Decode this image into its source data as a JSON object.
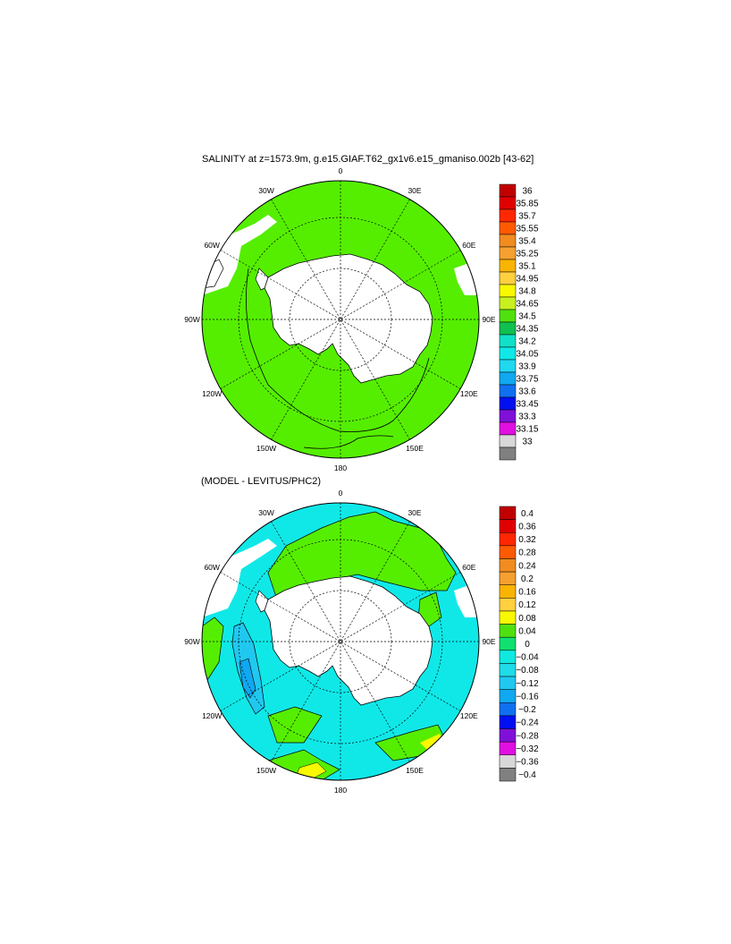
{
  "chart_data": [
    {
      "type": "map",
      "title": "SALINITY at z=1573.9m, g.e15.GIAF.T62_gx1v6.e15_gmaniso.002b [43-62]",
      "longitude_labels": [
        "0",
        "30E",
        "60E",
        "90E",
        "120E",
        "150E",
        "180",
        "150W",
        "120W",
        "90W",
        "60W",
        "30W"
      ],
      "colorbar": {
        "labels": [
          "36",
          "35.85",
          "35.7",
          "35.55",
          "35.4",
          "35.25",
          "35.1",
          "34.95",
          "34.8",
          "34.65",
          "34.5",
          "34.35",
          "34.2",
          "34.05",
          "33.9",
          "33.75",
          "33.6",
          "33.45",
          "33.3",
          "33.15",
          "33"
        ],
        "colors": [
          "#c00000",
          "#e00000",
          "#ff2800",
          "#ff5a00",
          "#f08c20",
          "#f5a030",
          "#f8b400",
          "#ffd040",
          "#f8f800",
          "#c8f020",
          "#50e010",
          "#10c050",
          "#10e0c8",
          "#10e8e8",
          "#20d8f0",
          "#10a8f0",
          "#1070f0",
          "#0010f0",
          "#8010d8",
          "#e010e0",
          "#d8d8d8",
          "#808080"
        ]
      }
    },
    {
      "type": "map",
      "title": "(MODEL - LEVITUS/PHC2)",
      "longitude_labels": [
        "0",
        "30E",
        "60E",
        "90E",
        "120E",
        "150E",
        "180",
        "150W",
        "120W",
        "90W",
        "60W",
        "30W"
      ],
      "colorbar": {
        "labels": [
          "0.4",
          "0.36",
          "0.32",
          "0.28",
          "0.24",
          "0.2",
          "0.16",
          "0.12",
          "0.08",
          "0.04",
          "0",
          "−0.04",
          "−0.08",
          "−0.12",
          "−0.16",
          "−0.2",
          "−0.24",
          "−0.28",
          "−0.32",
          "−0.36",
          "−0.4"
        ],
        "colors": [
          "#c00000",
          "#e00000",
          "#ff2800",
          "#ff5a00",
          "#f08c20",
          "#f5a030",
          "#f8b400",
          "#ffd040",
          "#f8f800",
          "#50e010",
          "#10e070",
          "#10e8e0",
          "#20dce8",
          "#20c8f0",
          "#10a8f0",
          "#1070f0",
          "#0010f0",
          "#8010d8",
          "#e010e0",
          "#d8d8d8",
          "#808080"
        ]
      }
    }
  ]
}
